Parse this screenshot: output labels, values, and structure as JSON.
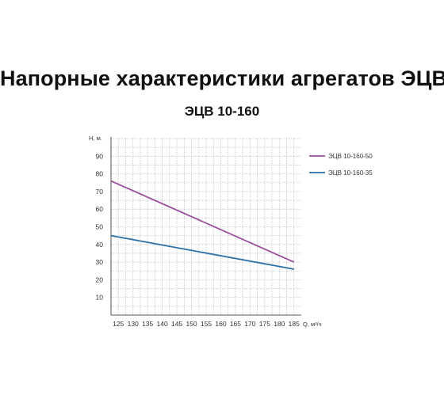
{
  "header": {
    "title": "Напорные характеристики агрегатов ЭЦВ",
    "subtitle": "ЭЦВ 10-160"
  },
  "chart_data": {
    "type": "line",
    "xlabel": "Q, м³/ч",
    "ylabel": "Н, м.",
    "x_ticks": [
      125,
      130,
      135,
      140,
      145,
      150,
      155,
      160,
      165,
      170,
      175,
      180,
      185
    ],
    "y_ticks": [
      10,
      20,
      30,
      40,
      50,
      60,
      70,
      80,
      90
    ],
    "xlim": [
      122.5,
      187.5
    ],
    "ylim": [
      0,
      100
    ],
    "grid": true,
    "legend_position": "right",
    "series": [
      {
        "name": "ЭЦВ 10-160-50",
        "color": "#9b4d9e",
        "x": [
          122.5,
          185
        ],
        "y": [
          76,
          30
        ]
      },
      {
        "name": "ЭЦВ 10-160-35",
        "color": "#2a6fa8",
        "x": [
          122.5,
          185
        ],
        "y": [
          45,
          26
        ]
      }
    ]
  }
}
